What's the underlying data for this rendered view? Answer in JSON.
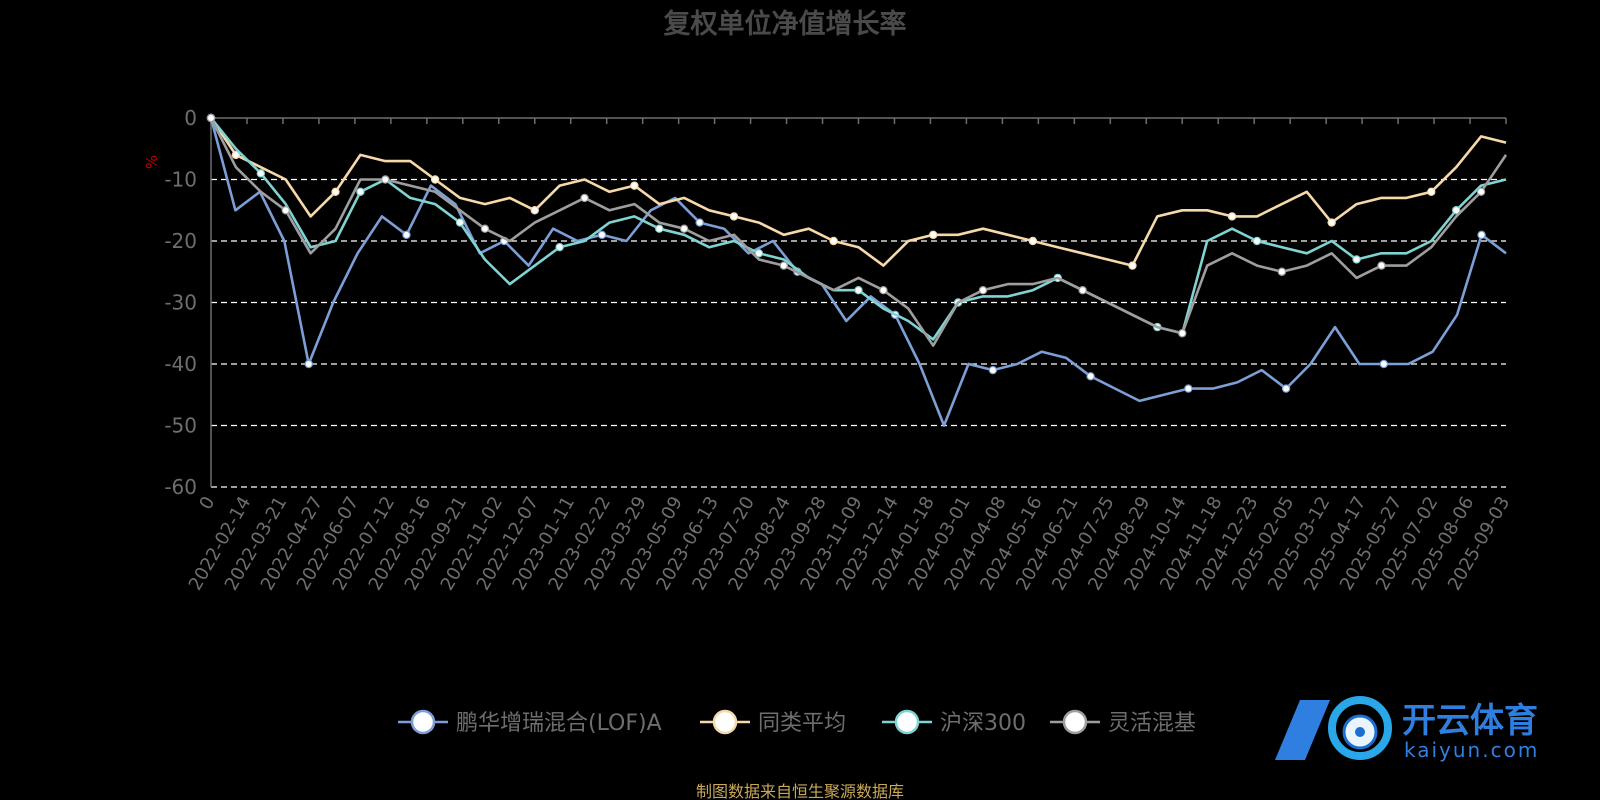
{
  "chart_data": {
    "type": "line",
    "title": "复权单位净值增长率",
    "ylabel": "%",
    "ylim": [
      -60,
      0
    ],
    "yticks": [
      0,
      -10,
      -20,
      -30,
      -40,
      -50,
      -60
    ],
    "xticks": [
      "0",
      "2022-02-14",
      "2022-03-21",
      "2022-04-27",
      "2022-06-07",
      "2022-07-12",
      "2022-08-16",
      "2022-09-21",
      "2022-11-02",
      "2022-12-07",
      "2023-01-11",
      "2023-02-22",
      "2023-03-29",
      "2023-05-09",
      "2023-06-13",
      "2023-07-20",
      "2023-08-24",
      "2023-09-28",
      "2023-11-09",
      "2023-12-14",
      "2024-01-18",
      "2024-03-01",
      "2024-04-08",
      "2024-05-16",
      "2024-06-21",
      "2024-07-25",
      "2024-08-29",
      "2024-10-14",
      "2024-11-18",
      "2024-12-23",
      "2025-02-05",
      "2025-03-12",
      "2025-04-17",
      "2025-05-27",
      "2025-07-02",
      "2025-08-06",
      "2025-09-03"
    ],
    "grid": "dashed horizontal",
    "legend_position": "bottom",
    "series": [
      {
        "name": "鹏华增瑞混合(LOF)A",
        "color": "#7b9fd6",
        "values": [
          0,
          -15,
          -12,
          -20,
          -40,
          -30,
          -22,
          -16,
          -19,
          -11,
          -14,
          -22,
          -20,
          -24,
          -18,
          -20,
          -19,
          -20,
          -15,
          -13,
          -17,
          -18,
          -22,
          -20,
          -25,
          -27,
          -33,
          -29,
          -32,
          -40,
          -50,
          -40,
          -41,
          -40,
          -38,
          -39,
          -42,
          -44,
          -46,
          -45,
          -44,
          -44,
          -43,
          -41,
          -44,
          -40,
          -34,
          -40,
          -40,
          -40,
          -38,
          -32,
          -19,
          -22
        ]
      },
      {
        "name": "同类平均",
        "color": "#f7d8a8",
        "values": [
          0,
          -6,
          -8,
          -10,
          -16,
          -12,
          -6,
          -7,
          -7,
          -10,
          -13,
          -14,
          -13,
          -15,
          -11,
          -10,
          -12,
          -11,
          -14,
          -13,
          -15,
          -16,
          -17,
          -19,
          -18,
          -20,
          -21,
          -24,
          -20,
          -19,
          -19,
          -18,
          -19,
          -20,
          -21,
          -22,
          -23,
          -24,
          -16,
          -15,
          -15,
          -16,
          -16,
          -14,
          -12,
          -17,
          -14,
          -13,
          -13,
          -12,
          -8,
          -3,
          -4
        ]
      },
      {
        "name": "沪深300",
        "color": "#7fd3d3",
        "values": [
          0,
          -5,
          -9,
          -14,
          -21,
          -20,
          -12,
          -10,
          -13,
          -14,
          -17,
          -23,
          -27,
          -24,
          -21,
          -20,
          -17,
          -16,
          -18,
          -19,
          -21,
          -20,
          -22,
          -23,
          -26,
          -28,
          -28,
          -31,
          -33,
          -36,
          -30,
          -29,
          -29,
          -28,
          -26,
          -28,
          -30,
          -32,
          -34,
          -35,
          -20,
          -18,
          -20,
          -21,
          -22,
          -20,
          -23,
          -22,
          -22,
          -20,
          -15,
          -11,
          -10
        ]
      },
      {
        "name": "灵活混基",
        "color": "#9e9e9e",
        "values": [
          0,
          -8,
          -12,
          -15,
          -22,
          -18,
          -10,
          -10,
          -11,
          -12,
          -15,
          -18,
          -20,
          -17,
          -15,
          -13,
          -15,
          -14,
          -17,
          -18,
          -20,
          -19,
          -23,
          -24,
          -26,
          -28,
          -26,
          -28,
          -31,
          -37,
          -30,
          -28,
          -27,
          -27,
          -26,
          -28,
          -30,
          -32,
          -34,
          -35,
          -24,
          -22,
          -24,
          -25,
          -24,
          -22,
          -26,
          -24,
          -24,
          -21,
          -16,
          -12,
          -6
        ]
      }
    ]
  },
  "footer": {
    "source": "制图数据来自恒生聚源数据库"
  },
  "logo": {
    "text": "开云体育",
    "sub": "kaiyun.com"
  }
}
